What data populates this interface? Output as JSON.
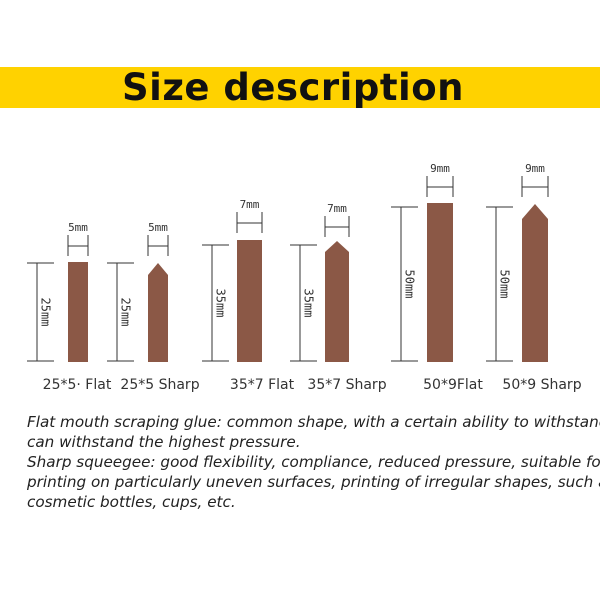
{
  "title": "Size description",
  "colors": {
    "banner": "#ffd200",
    "blade": "#8b5846",
    "line": "#333333"
  },
  "items": [
    {
      "label": "25*5· Flat",
      "width_label": "5mm",
      "height_label": "25mm",
      "shape": "flat"
    },
    {
      "label": "25*5 Sharp",
      "width_label": "5mm",
      "height_label": "25mm",
      "shape": "sharp"
    },
    {
      "label": "35*7 Flat",
      "width_label": "7mm",
      "height_label": "35mm",
      "shape": "flat"
    },
    {
      "label": "35*7 Sharp",
      "width_label": "7mm",
      "height_label": "35mm",
      "shape": "sharp"
    },
    {
      "label": "50*9Flat",
      "width_label": "9mm",
      "height_label": "50mm",
      "shape": "flat"
    },
    {
      "label": "50*9 Sharp",
      "width_label": "9mm",
      "height_label": "50mm",
      "shape": "sharp"
    }
  ],
  "description": [
    "Flat mouth scraping glue: common shape, with a certain ability to withstand,",
    "can withstand the highest pressure.",
    "Sharp squeegee: good flexibility, compliance, reduced pressure, suitable for",
    "printing on particularly uneven surfaces, printing of irregular shapes, such as",
    "cosmetic bottles, cups, etc."
  ]
}
